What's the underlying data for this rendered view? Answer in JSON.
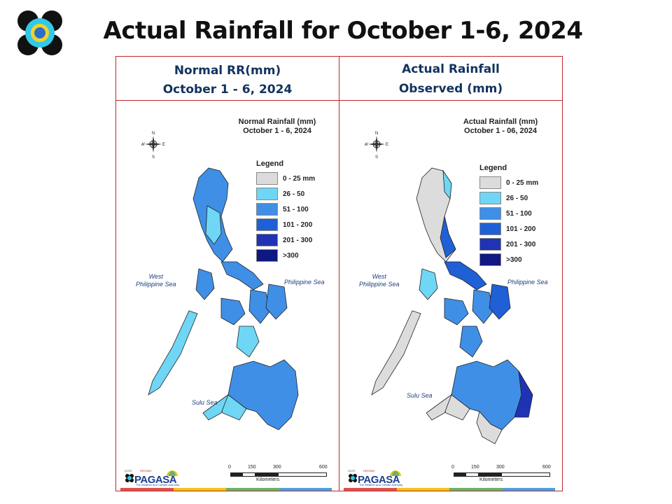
{
  "slide": {
    "title": "Actual Rainfall for October 1-6, 2024"
  },
  "panels": [
    {
      "header_line1": "Normal RR(mm)",
      "header_line2": "October 1 - 6, 2024",
      "map_title_line1": "Normal Rainfall (mm)",
      "map_title_line2": "October 1 - 6, 2024"
    },
    {
      "header_line1": "Actual Rainfall",
      "header_line2": "Observed (mm)",
      "map_title_line1": "Actual Rainfall (mm)",
      "map_title_line2": "October 1 - 06, 2024"
    }
  ],
  "legend": {
    "title": "Legend",
    "classes": [
      {
        "label": "0 - 25 mm",
        "color": "#dcdcdc"
      },
      {
        "label": "26 - 50",
        "color": "#6fd6f5"
      },
      {
        "label": "51 - 100",
        "color": "#3f8fe6"
      },
      {
        "label": "101 - 200",
        "color": "#1f60d6"
      },
      {
        "label": "201 - 300",
        "color": "#1f33b4"
      },
      {
        "label": ">300",
        "color": "#0f1782"
      }
    ]
  },
  "compass": {
    "n": "N",
    "s": "S",
    "e": "E",
    "w": "W"
  },
  "seas": {
    "west_line1": "West",
    "west_line2": "Philippine Sea",
    "philippine": "Philippine Sea",
    "sulu": "Sulu Sea"
  },
  "scale": {
    "ticks": [
      "0",
      "150",
      "300",
      "600"
    ],
    "unit": "Kilometers"
  },
  "brand": {
    "dost": "DOST",
    "bayan": "PAYONG",
    "name": "PAGASA",
    "tagline": "The Weather and Climate Authority",
    "strip_colors": [
      "#d9534f",
      "#f0c419",
      "#6bb26b",
      "#4aa3df"
    ]
  },
  "map_colors": {
    "outline": "#222222",
    "normal_region": "#6fd6f5",
    "normal_region_dark": "#3f8fe6",
    "actual_region": "#dcdcdc"
  }
}
